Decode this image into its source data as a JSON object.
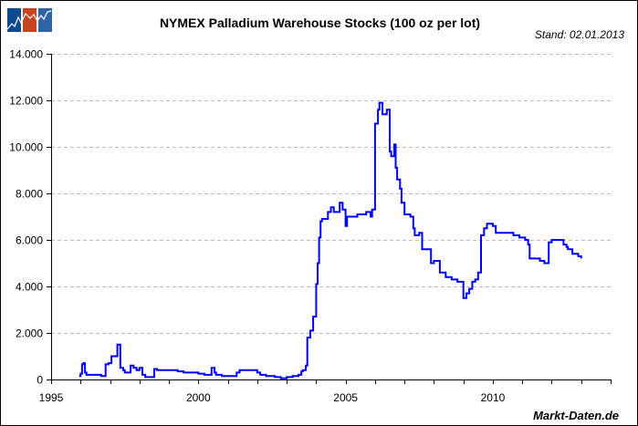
{
  "header": {
    "title": "NYMEX Palladium Warehouse Stocks (100 oz per lot)",
    "stand": "Stand: 02.01.2013",
    "brand": "Markt-Daten.de",
    "logo_colors": [
      "#0a4a8f",
      "#c8441e",
      "#2f63a6"
    ]
  },
  "colors": {
    "line": "#0000ff",
    "grid": "#bfbfbf",
    "axis": "#000000"
  },
  "chart_data": {
    "type": "line",
    "title": "NYMEX Palladium Warehouse Stocks (100 oz per lot)",
    "subtitle": "Stand: 02.01.2013",
    "xlabel": "",
    "ylabel": "",
    "xlim": [
      1995,
      2014
    ],
    "ylim": [
      0,
      14000
    ],
    "grid": {
      "y": true,
      "x": false,
      "style": "dashed"
    },
    "legend": null,
    "x_tick_labels": [
      "1995",
      "2000",
      "2005",
      "2010"
    ],
    "x_ticks_minor_every": 1,
    "y_tick_labels": [
      "0",
      "2.000",
      "4.000",
      "6.000",
      "8.000",
      "10.000",
      "12.000",
      "14.000"
    ],
    "y_ticks": [
      0,
      2000,
      4000,
      6000,
      8000,
      10000,
      12000,
      14000
    ],
    "series": [
      {
        "name": "Palladium Warehouse Stocks",
        "x": [
          1995.95,
          1996.0,
          1996.05,
          1996.1,
          1996.15,
          1996.2,
          1996.5,
          1996.7,
          1996.75,
          1996.85,
          1996.95,
          1997.05,
          1997.2,
          1997.25,
          1997.3,
          1997.35,
          1997.45,
          1997.5,
          1997.7,
          1997.8,
          1997.9,
          1998.0,
          1998.1,
          1998.2,
          1998.5,
          1998.6,
          1999.0,
          1999.3,
          1999.5,
          1999.8,
          2000.0,
          2000.2,
          2000.4,
          2000.45,
          2000.55,
          2000.6,
          2000.8,
          2001.0,
          2001.3,
          2001.4,
          2001.9,
          2002.0,
          2002.1,
          2002.3,
          2002.6,
          2002.8,
          2003.0,
          2003.2,
          2003.4,
          2003.5,
          2003.55,
          2003.65,
          2003.7,
          2003.8,
          2003.9,
          2004.0,
          2004.05,
          2004.1,
          2004.15,
          2004.2,
          2004.4,
          2004.5,
          2004.6,
          2004.8,
          2004.9,
          2005.0,
          2005.05,
          2005.15,
          2005.4,
          2005.7,
          2005.85,
          2005.9,
          2006.0,
          2006.1,
          2006.15,
          2006.25,
          2006.4,
          2006.5,
          2006.55,
          2006.65,
          2006.7,
          2006.75,
          2006.85,
          2006.9,
          2007.0,
          2007.2,
          2007.3,
          2007.35,
          2007.5,
          2007.6,
          2007.7,
          2007.9,
          2008.0,
          2008.2,
          2008.4,
          2008.6,
          2008.8,
          2008.95,
          2009.0,
          2009.1,
          2009.2,
          2009.3,
          2009.4,
          2009.5,
          2009.6,
          2009.7,
          2009.8,
          2010.0,
          2010.1,
          2010.2,
          2010.5,
          2010.7,
          2010.9,
          2011.1,
          2011.2,
          2011.25,
          2011.4,
          2011.6,
          2011.75,
          2011.85,
          2011.9,
          2012.0,
          2012.2,
          2012.4,
          2012.5,
          2012.55,
          2012.7,
          2012.9,
          2013.0
        ],
        "values": [
          150,
          250,
          650,
          700,
          300,
          200,
          200,
          150,
          150,
          650,
          700,
          1000,
          1000,
          1500,
          1500,
          500,
          400,
          300,
          600,
          500,
          400,
          500,
          200,
          100,
          450,
          400,
          400,
          350,
          300,
          300,
          250,
          200,
          200,
          500,
          300,
          200,
          150,
          150,
          300,
          400,
          400,
          300,
          200,
          150,
          100,
          50,
          100,
          150,
          200,
          350,
          400,
          600,
          1800,
          2100,
          2700,
          4100,
          5000,
          6100,
          6800,
          6900,
          7200,
          7400,
          7200,
          7600,
          7300,
          6600,
          7000,
          7000,
          7100,
          7200,
          7000,
          7300,
          11000,
          11600,
          11900,
          11400,
          11600,
          9800,
          9600,
          10100,
          9100,
          8600,
          8200,
          7600,
          7100,
          7000,
          6500,
          6200,
          6300,
          5600,
          5600,
          5000,
          5100,
          4600,
          4400,
          4300,
          4200,
          4200,
          3500,
          3700,
          3900,
          4200,
          4300,
          4600,
          6200,
          6500,
          6700,
          6600,
          6300,
          6300,
          6300,
          6200,
          6100,
          6000,
          5800,
          5200,
          5200,
          5100,
          5000,
          5000,
          5900,
          6000,
          6000,
          5800,
          5700,
          5600,
          5400,
          5300,
          5200
        ]
      }
    ]
  }
}
